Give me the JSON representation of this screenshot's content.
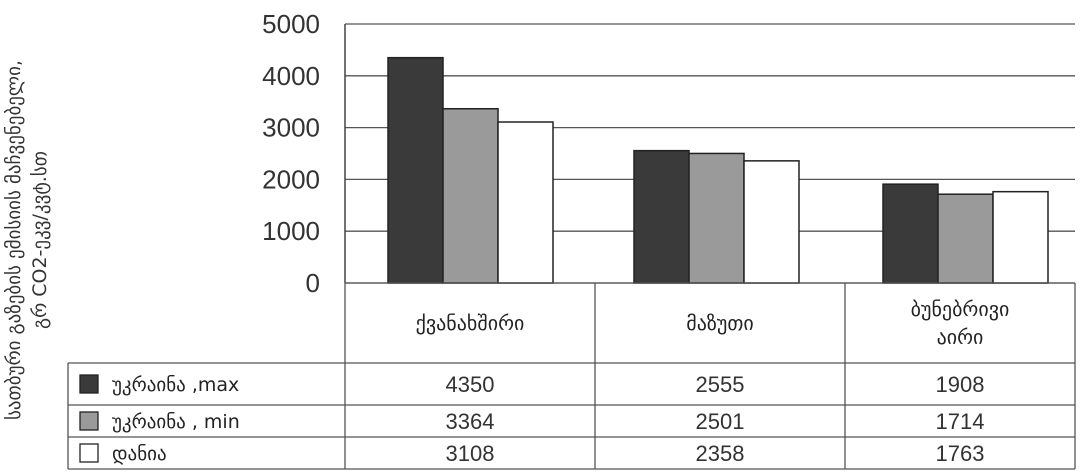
{
  "chart_data": {
    "type": "bar",
    "ylabel_line1": "სათბური გაზების ემისიის მაჩვენებელი,",
    "ylabel_line2": "გრ CO2-ეკვ/კვტ.სთ",
    "ylim": [
      0,
      5000
    ],
    "yticks": [
      0,
      1000,
      2000,
      3000,
      4000,
      5000
    ],
    "grid": true,
    "legend": "data table below chart",
    "categories": [
      [
        "ქვანახშირი"
      ],
      [
        "მაზუთი"
      ],
      [
        "ბუნებრივი",
        "აირი"
      ]
    ],
    "series": [
      {
        "name": "უკრაინა ,max",
        "values": [
          4350,
          2555,
          1908
        ],
        "color": "#3a3a3a"
      },
      {
        "name": "უკრაინა , min",
        "values": [
          3364,
          2501,
          1714
        ],
        "color": "#9a9a9a"
      },
      {
        "name": "დანია",
        "values": [
          3108,
          2358,
          1763
        ],
        "color": "#ffffff"
      }
    ]
  }
}
